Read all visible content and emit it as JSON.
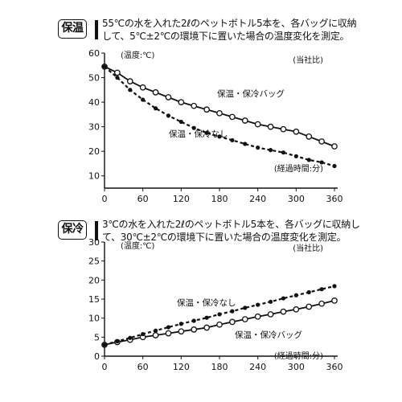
{
  "charts": [
    {
      "badge": "保温",
      "desc_lines": [
        "55℃の水を入れた2ℓのペットボトル5本を、各バッグに収納",
        "して、5℃±2℃の環境下に置いた場合の温度変化を測定。"
      ]
    },
    {
      "badge": "保冷",
      "desc_lines": [
        "3℃の水を入れた2ℓのペットボトル5本を、各バッグに収納し",
        "て、30℃±2℃の環境下に置いた場合の温度変化を測定。"
      ]
    }
  ],
  "chart_data": [
    {
      "type": "line",
      "ylabel": "(温度:℃)",
      "xlabel": "(経過時間:分)",
      "source_note": "(当社比)",
      "x_ticks": [
        0,
        60,
        120,
        180,
        240,
        300,
        360
      ],
      "y_ticks": [
        10,
        20,
        30,
        40,
        50,
        60
      ],
      "xlim": [
        0,
        360
      ],
      "ylim": [
        5,
        60
      ],
      "x": [
        0,
        20,
        40,
        60,
        80,
        100,
        120,
        140,
        160,
        180,
        200,
        220,
        240,
        260,
        280,
        300,
        320,
        340,
        360
      ],
      "series": [
        {
          "name": "保温・保冷バッグ",
          "style": "solid-open-circles",
          "values": [
            54.5,
            52,
            48.5,
            46,
            44,
            42,
            40,
            38.5,
            37,
            35.5,
            34,
            32.5,
            31,
            30,
            29,
            28,
            26,
            24,
            22
          ]
        },
        {
          "name": "保温・保冷なし",
          "style": "dashed-filled-dots",
          "values": [
            54.5,
            50,
            45,
            41,
            37.5,
            34.5,
            32,
            29.5,
            27.5,
            26,
            24.5,
            23,
            21.5,
            20.5,
            19.5,
            18,
            16.5,
            15.5,
            14
          ]
        }
      ]
    },
    {
      "type": "line",
      "ylabel": "(温度:℃)",
      "xlabel": "(経過時間:分)",
      "source_note": "(当社比)",
      "x_ticks": [
        0,
        60,
        120,
        180,
        240,
        300,
        360
      ],
      "y_ticks": [
        0,
        5,
        10,
        15,
        20,
        25,
        30
      ],
      "xlim": [
        0,
        360
      ],
      "ylim": [
        0,
        30
      ],
      "x": [
        0,
        20,
        40,
        60,
        80,
        100,
        120,
        140,
        160,
        180,
        200,
        220,
        240,
        260,
        280,
        300,
        320,
        340,
        360
      ],
      "series": [
        {
          "name": "保温・保冷バッグ",
          "style": "solid-open-circles",
          "values": [
            3,
            3.7,
            4.3,
            5,
            5.5,
            6,
            6.5,
            7,
            7.5,
            8.3,
            9,
            9.7,
            10.4,
            11,
            11.7,
            12.3,
            13,
            13.8,
            14.6
          ]
        },
        {
          "name": "保温・保冷なし",
          "style": "dashed-filled-dots",
          "values": [
            3,
            3.9,
            4.8,
            5.8,
            6.7,
            7.6,
            8.5,
            9.3,
            10.1,
            11,
            11.8,
            12.7,
            13.5,
            14.3,
            15.2,
            16,
            16.8,
            17.6,
            18.4
          ]
        }
      ]
    }
  ]
}
